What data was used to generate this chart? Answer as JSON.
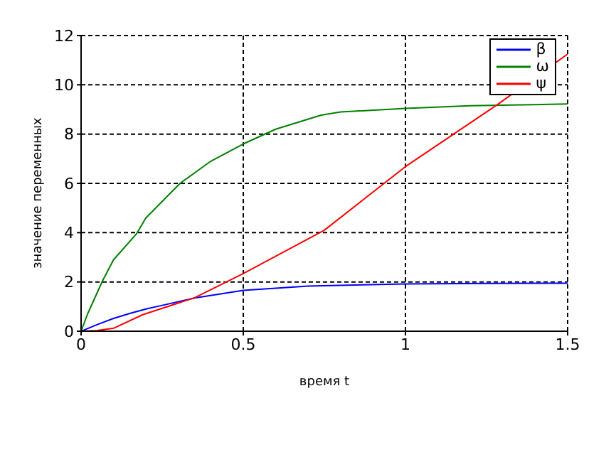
{
  "chart_data": {
    "type": "line",
    "xlabel": "время t",
    "ylabel": "значение переменных",
    "xlim": [
      0,
      1.5
    ],
    "xticks": [
      0,
      0.5,
      1,
      1.5
    ],
    "ylim": [
      0,
      12
    ],
    "yticks": [
      0,
      2,
      4,
      6,
      8,
      10,
      12
    ],
    "grid": true,
    "legend": "top right",
    "line_style": "solid",
    "marker": "none",
    "series": [
      {
        "name": "β",
        "color": "#0000ff",
        "x": [
          0,
          0.05,
          0.1,
          0.15,
          0.2,
          0.25,
          0.35,
          0.5,
          0.7,
          1,
          1.25,
          1.5
        ],
        "values": [
          0,
          0.27,
          0.52,
          0.72,
          0.9,
          1.05,
          1.35,
          1.66,
          1.83,
          1.92,
          1.94,
          1.95
        ]
      },
      {
        "name": "ω",
        "color": "#008000",
        "x": [
          0,
          0.02,
          0.066,
          0.1,
          0.17,
          0.2,
          0.305,
          0.4,
          0.5,
          0.6,
          0.74,
          0.8,
          1,
          1.2,
          1.5
        ],
        "values": [
          0,
          0.7,
          2.04,
          2.9,
          3.94,
          4.6,
          6.0,
          6.9,
          7.6,
          8.2,
          8.77,
          8.9,
          9.04,
          9.15,
          9.22
        ]
      },
      {
        "name": "ψ",
        "color": "#ff0000",
        "x": [
          0,
          0.05,
          0.1,
          0.19,
          0.35,
          0.5,
          0.75,
          1,
          1.286,
          1.5
        ],
        "values": [
          0,
          0.03,
          0.12,
          0.67,
          1.36,
          2.34,
          4.1,
          6.68,
          9.22,
          11.25
        ]
      }
    ]
  }
}
